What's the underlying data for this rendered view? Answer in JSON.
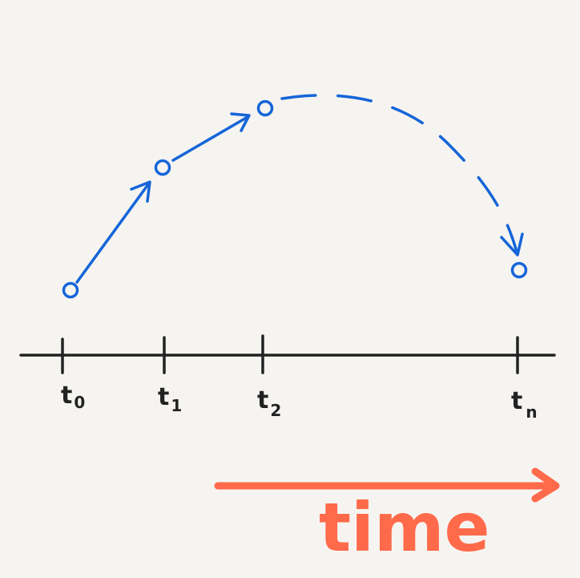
{
  "colors": {
    "background": "#f6f4f1",
    "axis": "#222222",
    "trajectory": "#1565d8",
    "time_arrow": "#ff6a4a"
  },
  "timeline": {
    "ticks": [
      {
        "base": "t",
        "sub": "0"
      },
      {
        "base": "t",
        "sub": "1"
      },
      {
        "base": "t",
        "sub": "2"
      },
      {
        "base": "t",
        "sub": "n"
      }
    ]
  },
  "time_arrow": {
    "label": "time"
  }
}
